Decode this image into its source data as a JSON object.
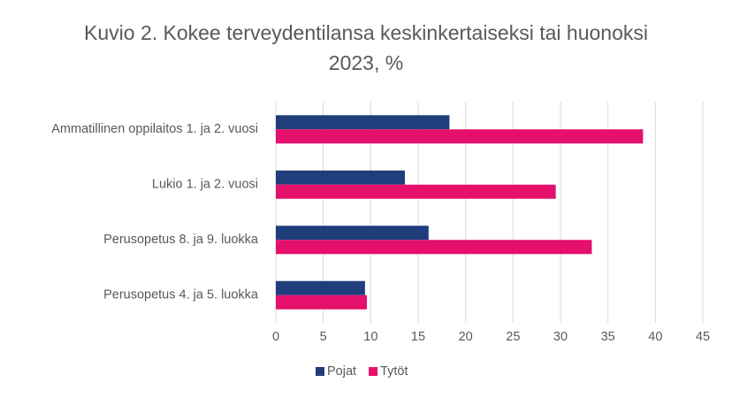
{
  "chart_data": {
    "type": "bar",
    "orientation": "horizontal",
    "title": "Kuvio 2. Kokee terveydentilansa keskinkertaiseksi tai huonoksi 2023, %",
    "categories": [
      "Ammatillinen oppilaitos 1. ja 2. vuosi",
      "Lukio 1. ja 2. vuosi",
      "Perusopetus 8. ja 9. luokka",
      "Perusopetus 4. ja 5. luokka"
    ],
    "series": [
      {
        "name": "Pojat",
        "color": "#203e7c",
        "values": [
          18.3,
          13.6,
          16.1,
          9.4
        ]
      },
      {
        "name": "Tytöt",
        "color": "#e5106b",
        "values": [
          38.7,
          29.5,
          33.3,
          9.6
        ]
      }
    ],
    "xlim": [
      0,
      45
    ],
    "xticks": [
      0,
      5,
      10,
      15,
      20,
      25,
      30,
      35,
      40,
      45
    ],
    "grid": true,
    "legend": "bottom"
  }
}
